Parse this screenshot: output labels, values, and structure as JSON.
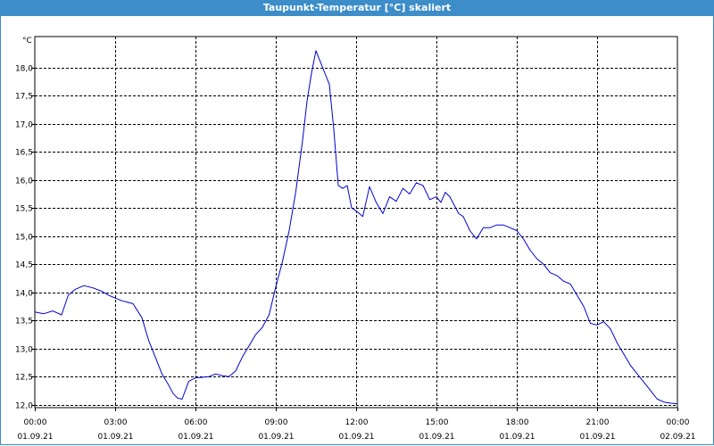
{
  "window": {
    "title": "Taupunkt-Temperatur [°C] skaliert"
  },
  "colors": {
    "titlebar": "#3c8dc8",
    "line": "#0000cc",
    "grid": "#000000"
  },
  "chart_data": {
    "type": "line",
    "title": "Taupunkt-Temperatur [°C] skaliert",
    "ylabel": "°C",
    "ylim": [
      11.95,
      18.55
    ],
    "xlim": [
      "01.09.21 00:00",
      "02.09.21 00:00"
    ],
    "grid": true,
    "yticks": [
      "12,0",
      "12,5",
      "13,0",
      "13,5",
      "14,0",
      "14,5",
      "15,0",
      "15,5",
      "16,0",
      "16,5",
      "17,0",
      "17,5",
      "18,0"
    ],
    "ytick_values": [
      12.0,
      12.5,
      13.0,
      13.5,
      14.0,
      14.5,
      15.0,
      15.5,
      16.0,
      16.5,
      17.0,
      17.5,
      18.0
    ],
    "xticks": [
      {
        "time": "00:00",
        "date": "01.09.21"
      },
      {
        "time": "03:00",
        "date": "01.09.21"
      },
      {
        "time": "06:00",
        "date": "01.09.21"
      },
      {
        "time": "09:00",
        "date": "01.09.21"
      },
      {
        "time": "12:00",
        "date": "01.09.21"
      },
      {
        "time": "15:00",
        "date": "01.09.21"
      },
      {
        "time": "18:00",
        "date": "01.09.21"
      },
      {
        "time": "21:00",
        "date": "01.09.21"
      },
      {
        "time": "00:00",
        "date": "02.09.21"
      }
    ],
    "series": [
      {
        "x": [
          "01.09.21 00:00",
          "01.09.21 00:20",
          "01.09.21 00:40",
          "01.09.21 01:00",
          "01.09.21 01:15",
          "01.09.21 01:30",
          "01.09.21 01:50",
          "01.09.21 02:10",
          "01.09.21 02:30",
          "01.09.21 02:45",
          "01.09.21 03:00",
          "01.09.21 03:15",
          "01.09.21 03:30",
          "01.09.21 03:40",
          "01.09.21 04:00",
          "01.09.21 04:15",
          "01.09.21 04:30",
          "01.09.21 04:45",
          "01.09.21 05:00",
          "01.09.21 05:10",
          "01.09.21 05:20",
          "01.09.21 05:30",
          "01.09.21 05:45",
          "01.09.21 06:00",
          "01.09.21 06:15",
          "01.09.21 06:30",
          "01.09.21 06:45",
          "01.09.21 07:00",
          "01.09.21 07:15",
          "01.09.21 07:30",
          "01.09.21 07:45",
          "01.09.21 08:00",
          "01.09.21 08:15",
          "01.09.21 08:30",
          "01.09.21 08:45",
          "01.09.21 09:00",
          "01.09.21 09:15",
          "01.09.21 09:30",
          "01.09.21 09:45",
          "01.09.21 10:00",
          "01.09.21 10:10",
          "01.09.21 10:20",
          "01.09.21 10:30",
          "01.09.21 10:40",
          "01.09.21 10:50",
          "01.09.21 11:00",
          "01.09.21 11:10",
          "01.09.21 11:20",
          "01.09.21 11:30",
          "01.09.21 11:40",
          "01.09.21 11:50",
          "01.09.21 12:00",
          "01.09.21 12:15",
          "01.09.21 12:30",
          "01.09.21 12:45",
          "01.09.21 13:00",
          "01.09.21 13:15",
          "01.09.21 13:30",
          "01.09.21 13:45",
          "01.09.21 14:00",
          "01.09.21 14:15",
          "01.09.21 14:30",
          "01.09.21 14:45",
          "01.09.21 15:00",
          "01.09.21 15:10",
          "01.09.21 15:20",
          "01.09.21 15:30",
          "01.09.21 15:40",
          "01.09.21 15:50",
          "01.09.21 16:00",
          "01.09.21 16:15",
          "01.09.21 16:30",
          "01.09.21 16:45",
          "01.09.21 17:00",
          "01.09.21 17:15",
          "01.09.21 17:30",
          "01.09.21 17:45",
          "01.09.21 18:00",
          "01.09.21 18:15",
          "01.09.21 18:30",
          "01.09.21 18:45",
          "01.09.21 19:00",
          "01.09.21 19:15",
          "01.09.21 19:30",
          "01.09.21 19:45",
          "01.09.21 20:00",
          "01.09.21 20:15",
          "01.09.21 20:30",
          "01.09.21 20:45",
          "01.09.21 21:00",
          "01.09.21 21:15",
          "01.09.21 21:30",
          "01.09.21 21:45",
          "01.09.21 22:00",
          "01.09.21 22:15",
          "01.09.21 22:30",
          "01.09.21 22:45",
          "01.09.21 23:00",
          "01.09.21 23:15",
          "01.09.21 23:30",
          "01.09.21 23:45",
          "02.09.21 00:00"
        ],
        "y": [
          13.65,
          13.62,
          13.67,
          13.6,
          13.95,
          14.05,
          14.12,
          14.08,
          14.02,
          13.95,
          13.9,
          13.85,
          13.82,
          13.8,
          13.55,
          13.15,
          12.85,
          12.55,
          12.35,
          12.2,
          12.12,
          12.1,
          12.42,
          12.48,
          12.49,
          12.5,
          12.55,
          12.52,
          12.5,
          12.6,
          12.85,
          13.05,
          13.25,
          13.38,
          13.6,
          14.1,
          14.55,
          15.1,
          15.8,
          16.7,
          17.4,
          17.9,
          18.3,
          18.1,
          17.9,
          17.7,
          16.9,
          15.9,
          15.85,
          15.9,
          15.5,
          15.45,
          15.35,
          15.88,
          15.6,
          15.4,
          15.7,
          15.62,
          15.85,
          15.75,
          15.95,
          15.9,
          15.65,
          15.7,
          15.6,
          15.78,
          15.7,
          15.55,
          15.4,
          15.35,
          15.1,
          14.95,
          15.15,
          15.15,
          15.2,
          15.2,
          15.15,
          15.1,
          14.95,
          14.75,
          14.6,
          14.5,
          14.35,
          14.3,
          14.2,
          14.15,
          13.95,
          13.75,
          13.45,
          13.42,
          13.48,
          13.35,
          13.1,
          12.9,
          12.7,
          12.55,
          12.4,
          12.25,
          12.1,
          12.05,
          12.03,
          12.02
        ]
      }
    ]
  }
}
